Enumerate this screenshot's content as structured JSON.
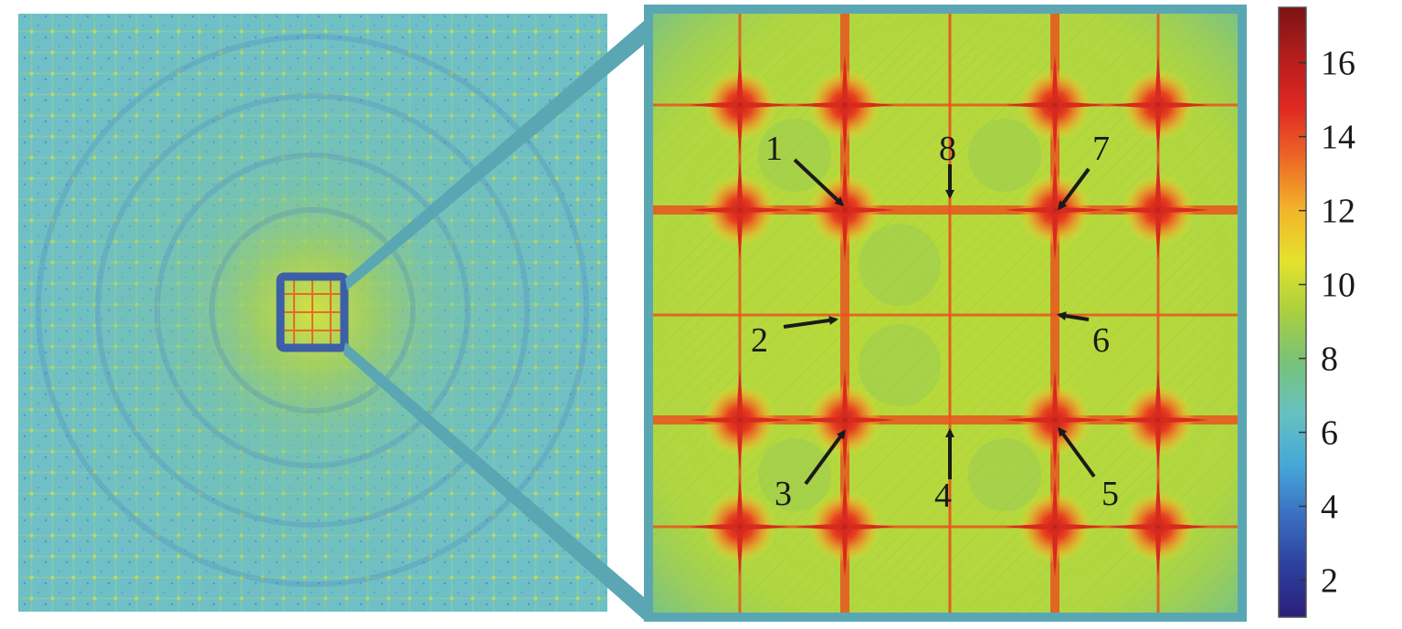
{
  "figure": {
    "point_labels": [
      "1",
      "2",
      "3",
      "4",
      "5",
      "6",
      "7",
      "8"
    ]
  },
  "colorbar": {
    "ticks": [
      {
        "value": 2,
        "label": "2"
      },
      {
        "value": 4,
        "label": "4"
      },
      {
        "value": 6,
        "label": "6"
      },
      {
        "value": 8,
        "label": "8"
      },
      {
        "value": 10,
        "label": "10"
      },
      {
        "value": 12,
        "label": "12"
      },
      {
        "value": 14,
        "label": "14"
      },
      {
        "value": 16,
        "label": "16"
      }
    ],
    "range": [
      1,
      17.5
    ],
    "colormap": [
      "#2b1f7a",
      "#2e3f9e",
      "#3a6fc2",
      "#45a8d8",
      "#66c1c0",
      "#78c27a",
      "#a9cf3f",
      "#e4e22e",
      "#f3b52a",
      "#ec6a26",
      "#e02a22",
      "#b51d1d",
      "#7b1414"
    ]
  },
  "colors": {
    "frame": "#5aa7b3",
    "left_background": "#6fbfc6",
    "zoom_background": "#b7d93a",
    "bright_line": "#e8541f",
    "highlight_box": "#3d5fa6",
    "arrow": "#1a1a1a"
  }
}
